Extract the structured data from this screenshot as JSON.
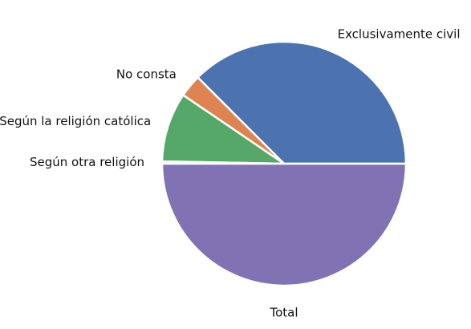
{
  "chart_data": {
    "type": "pie",
    "title": "",
    "slices": [
      {
        "label": "Exclusivamente civil",
        "value": 37.5,
        "color": "#4c72b0"
      },
      {
        "label": "No consta",
        "value": 3.0,
        "color": "#dd8452"
      },
      {
        "label": "Según la religión católica",
        "value": 9.2,
        "color": "#55a868"
      },
      {
        "label": "Según otra religión",
        "value": 0.3,
        "color": "#c44e52"
      },
      {
        "label": "Total",
        "value": 50.0,
        "color": "#8172b3"
      }
    ],
    "start_angle_deg": 0,
    "direction": "counterclockwise",
    "legend": "none"
  }
}
